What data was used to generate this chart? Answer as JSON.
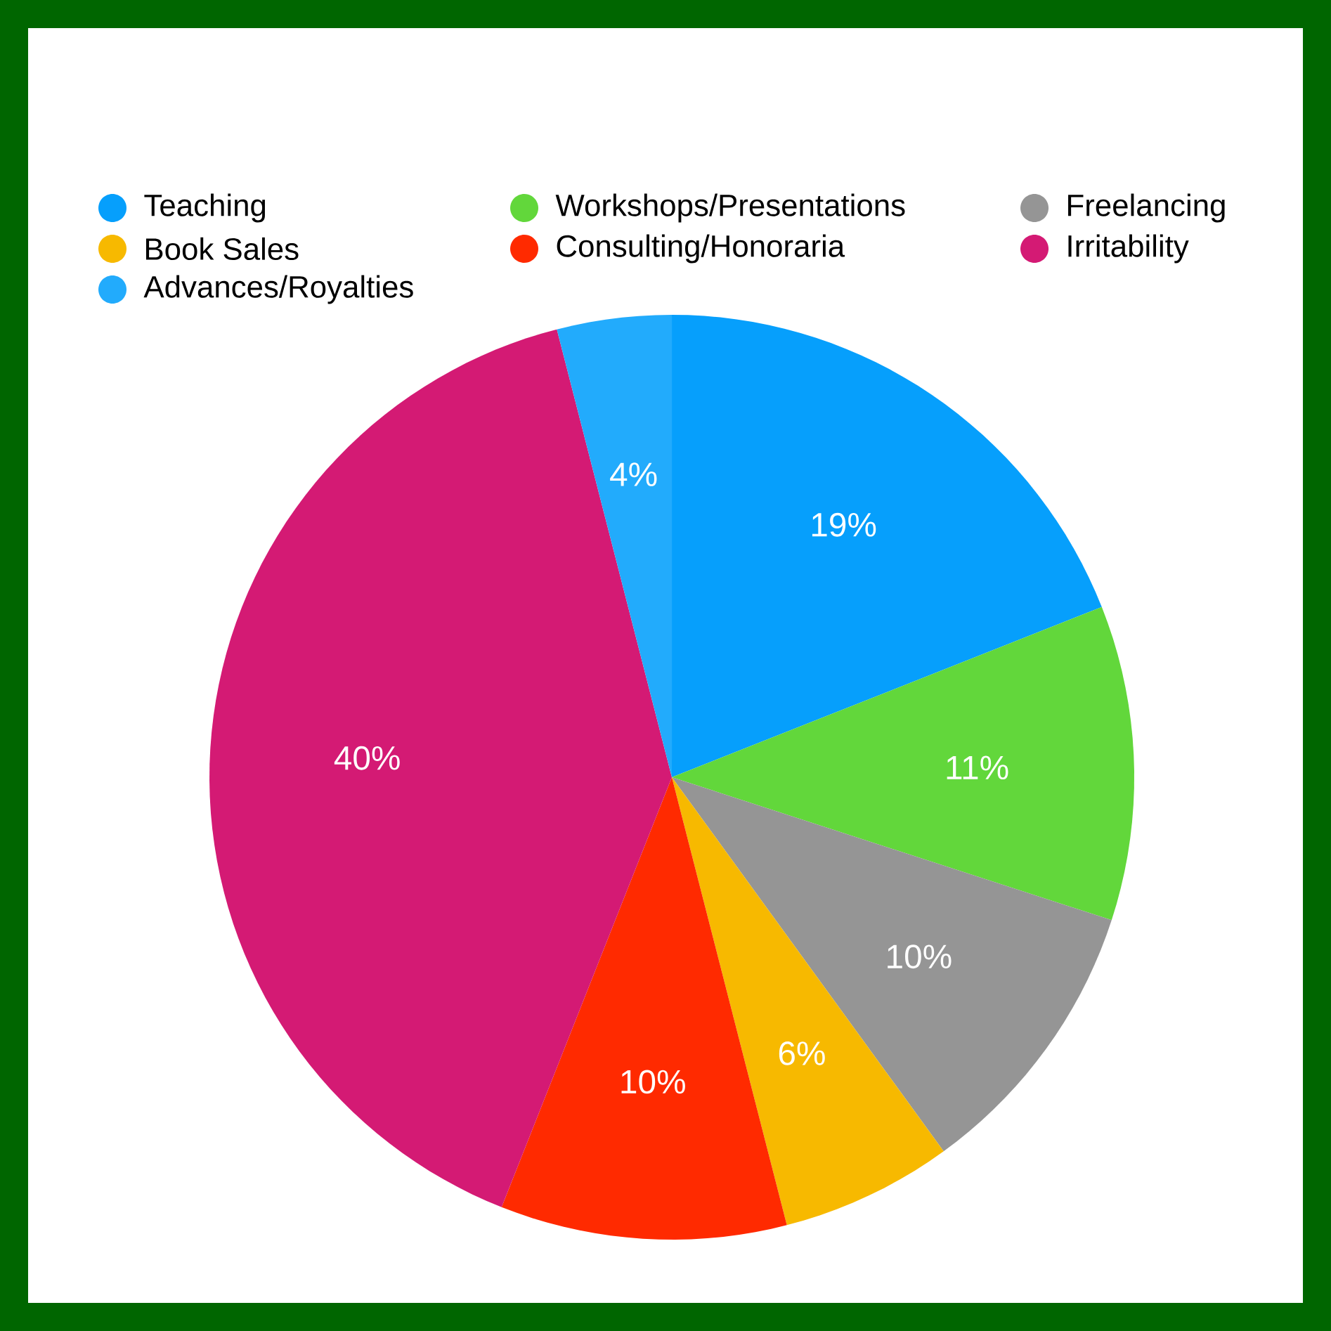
{
  "chart_data": {
    "type": "pie",
    "categories": [
      "Teaching",
      "Workshops/Presentations",
      "Freelancing",
      "Book Sales",
      "Consulting/Honoraria",
      "Irritability",
      "Advances/Royalties"
    ],
    "values": [
      19,
      11,
      10,
      6,
      10,
      40,
      4
    ],
    "value_labels": [
      "19%",
      "11%",
      "10%",
      "6%",
      "10%",
      "40%",
      "4%"
    ],
    "colors": [
      "#069ffc",
      "#62d73b",
      "#959595",
      "#f7b900",
      "#ff2a00",
      "#d41a74",
      "#22abfc"
    ],
    "legend": "top"
  }
}
